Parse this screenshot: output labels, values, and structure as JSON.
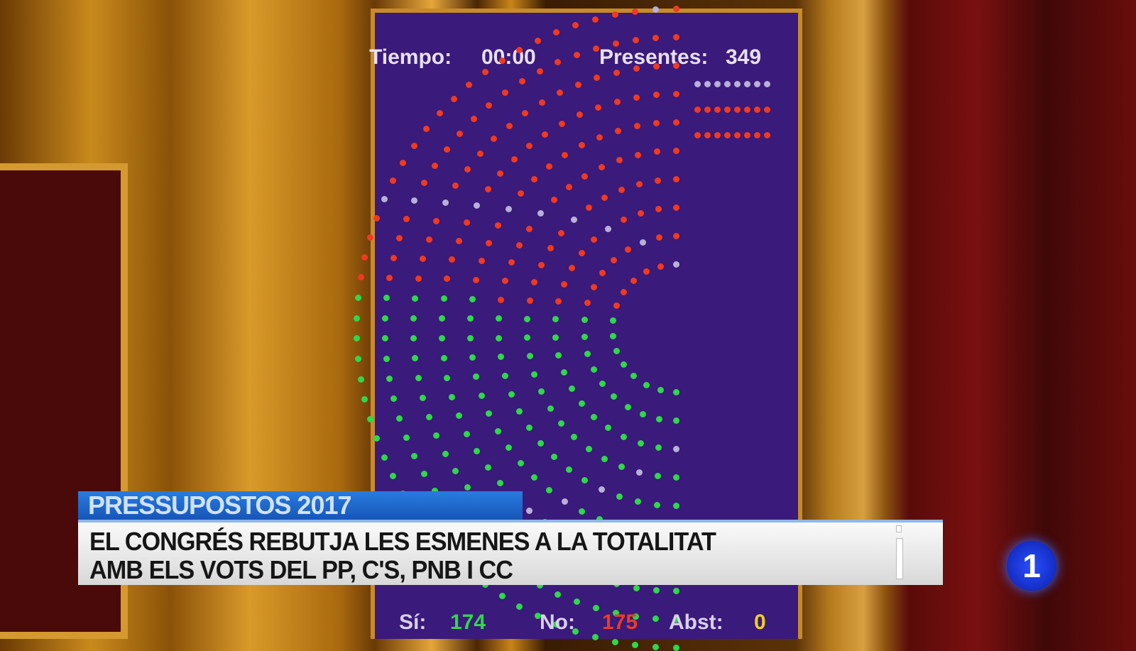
{
  "board": {
    "time_label": "Tiempo:",
    "time_value": "00:00",
    "present_label": "Presentes:",
    "present_value": "349",
    "yes_label": "Sí:",
    "yes_value": "174",
    "no_label": "No:",
    "no_value": "175",
    "abst_label": "Abst:",
    "abst_value": "0"
  },
  "lower_third": {
    "tag": "PRESSUPOSTOS 2017",
    "line1": "EL CONGRÉS REBUTJA LES ESMENES A LA TOTALITAT",
    "line2": "AMB ELS VOTS DEL PP, C'S, PNB I CC"
  },
  "channel": {
    "logo": "1"
  },
  "colors": {
    "board": "#3a1a7a",
    "yes": "#2ed84a",
    "no": "#f03a20",
    "absent": "#b8b0d8",
    "abst": "#f0d020",
    "tag": "#1f68cc"
  }
}
